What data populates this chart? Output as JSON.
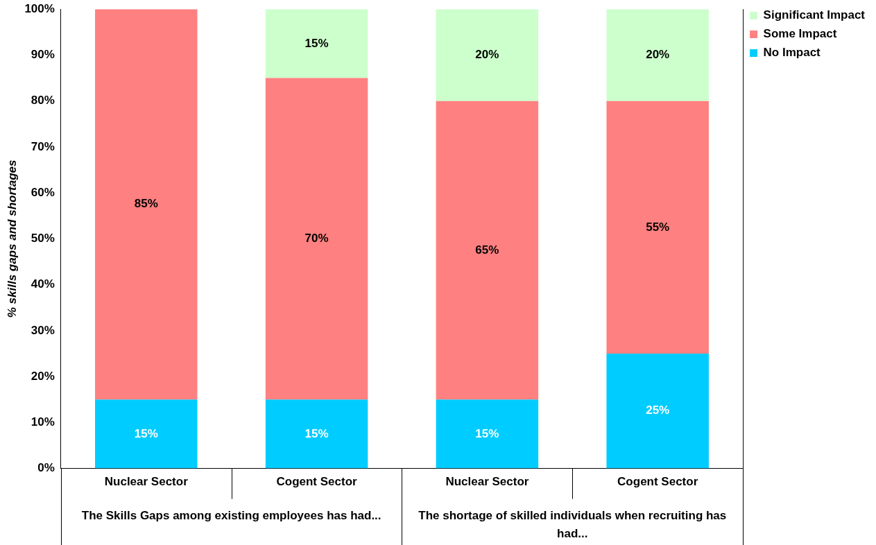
{
  "chart_data": {
    "type": "bar",
    "stacked": true,
    "ylabel": "% skills gaps and shortages",
    "categories": [
      "Nuclear Sector",
      "Cogent Sector",
      "Nuclear Sector",
      "Cogent Sector"
    ],
    "series": [
      {
        "name": "No Impact",
        "color": "#00ccff",
        "values": [
          15,
          15,
          15,
          25
        ],
        "value_labels": [
          "15%",
          "15%",
          "15%",
          "25%"
        ]
      },
      {
        "name": "Some Impact",
        "color": "#ff8080",
        "values": [
          85,
          70,
          65,
          55
        ],
        "value_labels": [
          "85%",
          "70%",
          "65%",
          "55%"
        ]
      },
      {
        "name": "Significant Impact",
        "color": "#ccffcc",
        "values": [
          null,
          15,
          20,
          20
        ],
        "value_labels": [
          null,
          "15%",
          "20%",
          "20%"
        ]
      }
    ],
    "ylim": [
      0,
      100
    ],
    "yticks": [
      {
        "value": 0,
        "label": "0%"
      },
      {
        "value": 10,
        "label": "10%"
      },
      {
        "value": 20,
        "label": "20%"
      },
      {
        "value": 30,
        "label": "30%"
      },
      {
        "value": 40,
        "label": "40%"
      },
      {
        "value": 50,
        "label": "50%"
      },
      {
        "value": 60,
        "label": "60%"
      },
      {
        "value": 70,
        "label": "70%"
      },
      {
        "value": 80,
        "label": "80%"
      },
      {
        "value": 90,
        "label": "90%"
      },
      {
        "value": 100,
        "label": "100%"
      }
    ],
    "annotations": [
      "The Skills Gaps among existing employees has had...",
      "The shortage of skilled individuals when recruiting has had..."
    ],
    "legend": "top right",
    "grid": false
  }
}
